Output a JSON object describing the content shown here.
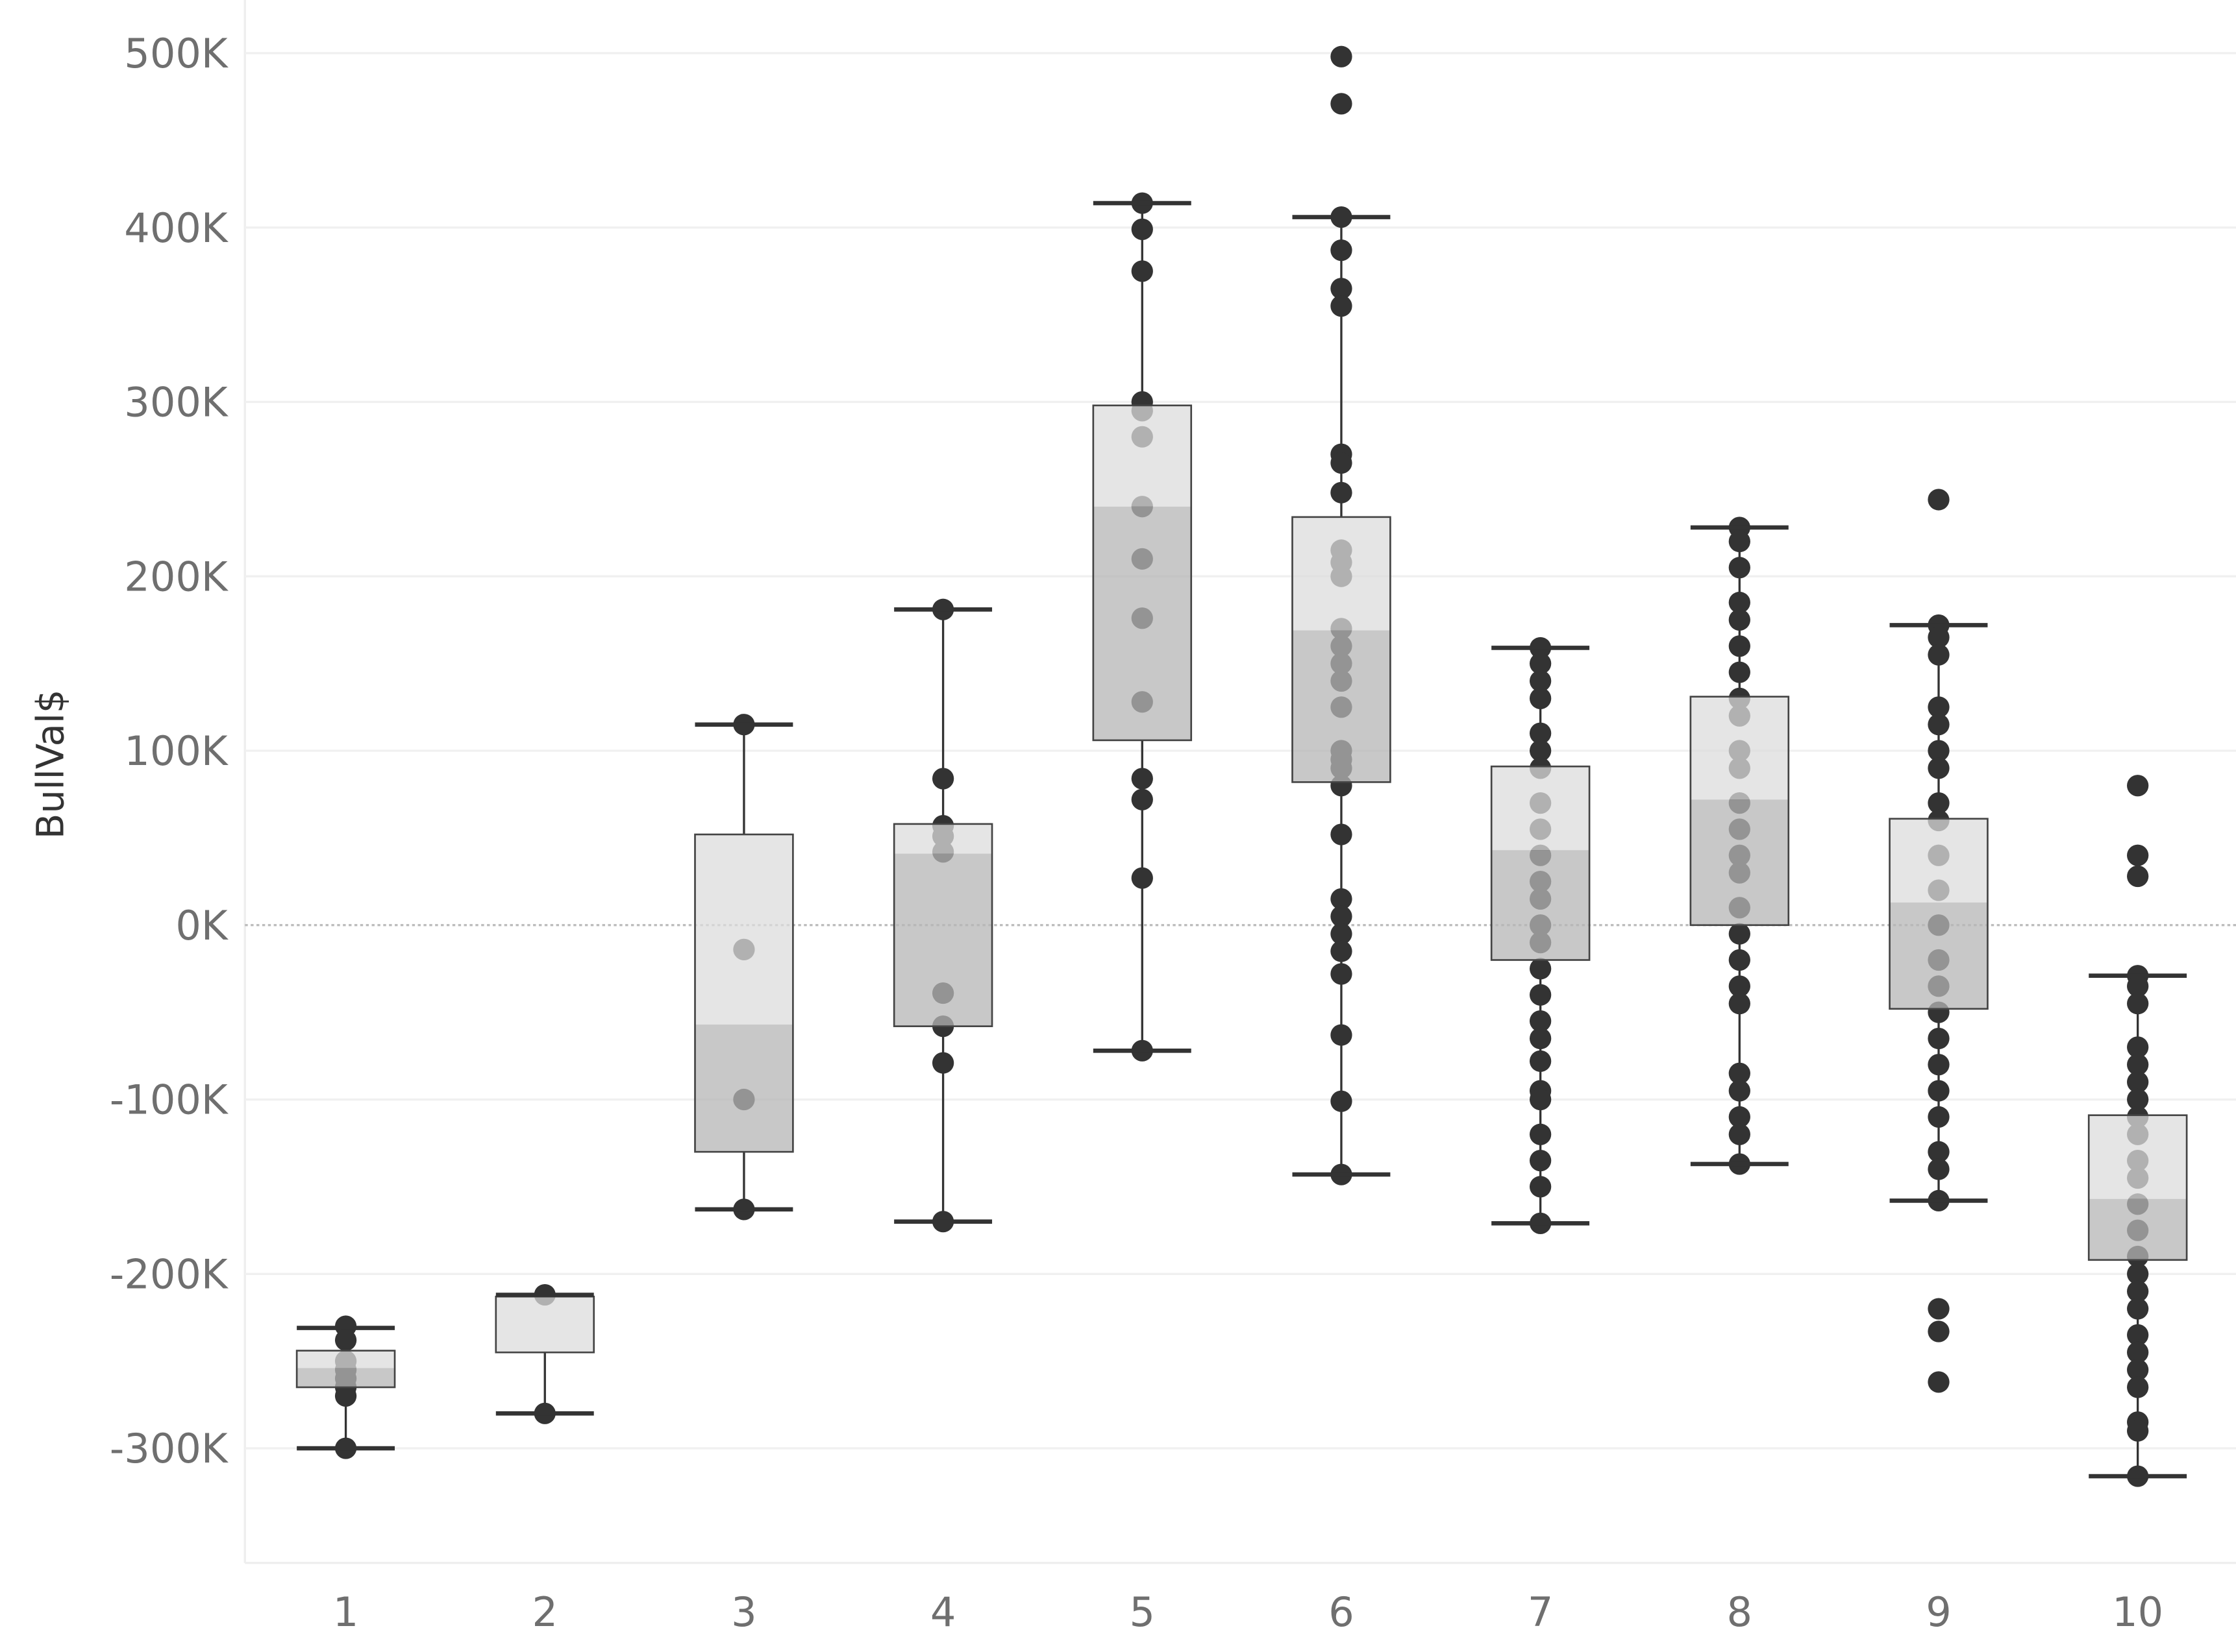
{
  "chart_data": {
    "type": "boxplot",
    "title": "",
    "xlabel": "",
    "ylabel": "BullVal$",
    "ylim": [
      -360000,
      510000
    ],
    "yticks": [
      500000,
      400000,
      300000,
      200000,
      100000,
      0,
      -100000,
      -200000,
      -300000
    ],
    "ytick_labels": [
      "500K",
      "400K",
      "300K",
      "200K",
      "100K",
      "0K",
      "-100K",
      "-200K",
      "-300K"
    ],
    "grid": true,
    "colors": {
      "upper_box": "#dcdcdc",
      "lower_box": "#b5b5b5",
      "points": "#333333",
      "axis_text": "#6f6f6f"
    },
    "categories": [
      "1",
      "2",
      "3",
      "4",
      "5",
      "6",
      "7",
      "8",
      "9",
      "10"
    ],
    "boxes": [
      {
        "whisker_low": -300000,
        "q1": -265000,
        "median": -254000,
        "q3": -244000,
        "whisker_high": -231000,
        "points": [
          -230000,
          -238000,
          -250000,
          -255000,
          -260000,
          -265000,
          -270000,
          -300000
        ]
      },
      {
        "whisker_low": -280000,
        "q1": -245000,
        "median": -245000,
        "q3": -213000,
        "whisker_high": -212000,
        "points": [
          -212000,
          -280000
        ]
      },
      {
        "whisker_low": -163000,
        "q1": -130000,
        "median": -57000,
        "q3": 52000,
        "whisker_high": 115000,
        "points": [
          115000,
          -14000,
          -100000,
          -163000
        ]
      },
      {
        "whisker_low": -170000,
        "q1": -58000,
        "median": 41000,
        "q3": 58000,
        "whisker_high": 181000,
        "points": [
          181000,
          84000,
          57000,
          51000,
          42000,
          -39000,
          -58000,
          -79000,
          -170000
        ]
      },
      {
        "whisker_low": -72000,
        "q1": 106000,
        "median": 240000,
        "q3": 298000,
        "whisker_high": 414000,
        "points": [
          414000,
          399000,
          375000,
          300000,
          295000,
          280000,
          240000,
          210000,
          176000,
          128000,
          84000,
          72000,
          27000,
          -72000
        ]
      },
      {
        "whisker_low": -143000,
        "q1": 82000,
        "median": 169000,
        "q3": 234000,
        "whisker_high": 406000,
        "points": [
          498000,
          471000,
          406000,
          387000,
          365000,
          355000,
          270000,
          265000,
          248000,
          215000,
          208000,
          200000,
          170000,
          160000,
          150000,
          140000,
          125000,
          100000,
          95000,
          90000,
          80000,
          52000,
          15000,
          5000,
          -5000,
          -15000,
          -28000,
          -63000,
          -101000,
          -143000
        ]
      },
      {
        "whisker_low": -171000,
        "q1": -20000,
        "median": 43000,
        "q3": 91000,
        "whisker_high": 159000,
        "points": [
          159000,
          150000,
          140000,
          130000,
          110000,
          100000,
          90000,
          70000,
          55000,
          40000,
          25000,
          15000,
          0,
          -10000,
          -25000,
          -40000,
          -55000,
          -65000,
          -78000,
          -95000,
          -100000,
          -120000,
          -135000,
          -150000,
          -171000
        ]
      },
      {
        "whisker_low": -137000,
        "q1": 0,
        "median": 72000,
        "q3": 131000,
        "whisker_high": 228000,
        "points": [
          228000,
          220000,
          205000,
          185000,
          175000,
          160000,
          145000,
          130000,
          120000,
          100000,
          90000,
          70000,
          55000,
          40000,
          30000,
          10000,
          -5000,
          -20000,
          -35000,
          -45000,
          -85000,
          -95000,
          -110000,
          -120000,
          -137000
        ]
      },
      {
        "whisker_low": -158000,
        "q1": -48000,
        "median": 13000,
        "q3": 61000,
        "whisker_high": 172000,
        "points": [
          244000,
          172000,
          165000,
          155000,
          125000,
          115000,
          100000,
          90000,
          70000,
          60000,
          40000,
          20000,
          0,
          -20000,
          -35000,
          -50000,
          -65000,
          -80000,
          -95000,
          -110000,
          -130000,
          -140000,
          -158000,
          -220000,
          -233000,
          -262000
        ]
      },
      {
        "whisker_low": -316000,
        "q1": -192000,
        "median": -157000,
        "q3": -109000,
        "whisker_high": -29000,
        "points": [
          80000,
          40000,
          28000,
          -29000,
          -35000,
          -45000,
          -70000,
          -80000,
          -90000,
          -100000,
          -110000,
          -120000,
          -135000,
          -145000,
          -160000,
          -175000,
          -190000,
          -200000,
          -210000,
          -220000,
          -235000,
          -245000,
          -255000,
          -265000,
          -285000,
          -290000,
          -316000
        ]
      }
    ]
  }
}
